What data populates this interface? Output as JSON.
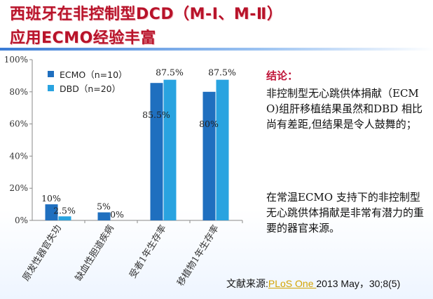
{
  "title": {
    "line1": "西班牙在非控制型DCD（M-Ⅰ、M-Ⅱ）",
    "line2": "应用ECMO经验丰富"
  },
  "colors": {
    "title": "#b8132a",
    "ecmo": "#1f6fbf",
    "dbd": "#29a3e0",
    "conclusion_head": "#c0163a",
    "source_link": "#d4a400"
  },
  "chart_data": {
    "type": "bar",
    "categories": [
      "原发性器官失功",
      "缺血性胆道疾病",
      "受者1年生存率",
      "移植物1年生存率"
    ],
    "series": [
      {
        "name": "ECMO（n=10）",
        "values": [
          10,
          5,
          85.5,
          80
        ],
        "labels": [
          "10%",
          "5%",
          "85.5%",
          "80%"
        ]
      },
      {
        "name": "DBD（n=20）",
        "values": [
          2.5,
          0,
          87.5,
          87.5
        ],
        "labels": [
          "2.5%",
          "0%",
          "87.5%",
          "87.5%"
        ]
      }
    ],
    "ylim": [
      0,
      100
    ],
    "yticks": [
      "0%",
      "20%",
      "40%",
      "60%",
      "80%",
      "100%"
    ],
    "legend_position": "top-left",
    "grid": false
  },
  "conclusion": {
    "heading": "结论：",
    "paragraph1": "非控制型无心跳供体捐献（ECMO)组肝移植结果虽然和DBD 相比尚有差距,但结果是令人鼓舞的；",
    "paragraph2": "在常温ECMO 支持下的非控制型无心跳供体捐献是非常有潜力的重要的器官来源。"
  },
  "source": {
    "prefix": "文献来源:",
    "journal": "PLoS One ",
    "citation": "2013 May，30;8(5)"
  }
}
